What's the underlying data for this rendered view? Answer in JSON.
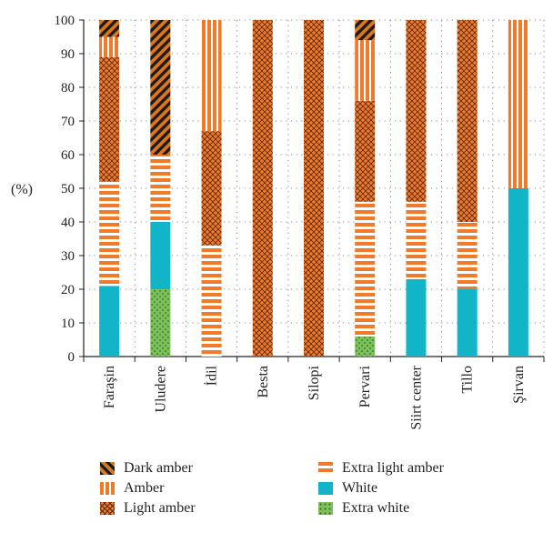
{
  "chart_data": {
    "type": "bar",
    "stacked": true,
    "ylabel": "(%)",
    "ylim": [
      0,
      100
    ],
    "yticks": [
      0,
      10,
      20,
      30,
      40,
      50,
      60,
      70,
      80,
      90,
      100
    ],
    "grid": true,
    "legend_position": "bottom",
    "categories": [
      "Faraşin",
      "Uludere",
      "İdil",
      "Besta",
      "Silopi",
      "Pervari",
      "Siirt center",
      "Tillo",
      "Şirvan"
    ],
    "series": [
      {
        "name": "Extra white",
        "color": "#7cc05a",
        "pattern": "dots",
        "values": [
          0,
          20,
          0,
          0,
          0,
          6,
          0,
          0,
          0
        ]
      },
      {
        "name": "White",
        "color": "#12b5c7",
        "pattern": "solid",
        "values": [
          21,
          20,
          0,
          0,
          0,
          0,
          23,
          20,
          50
        ]
      },
      {
        "name": "Extra light amber",
        "color": "#f07a2a",
        "pattern": "hstripes",
        "values": [
          31,
          20,
          33,
          0,
          0,
          40,
          23,
          20,
          0
        ]
      },
      {
        "name": "Light amber",
        "color": "#f07a2a",
        "pattern": "crosshatch",
        "values": [
          37,
          0,
          34,
          100,
          100,
          30,
          54,
          60,
          0
        ]
      },
      {
        "name": "Amber",
        "color": "#f07a2a",
        "pattern": "vstripes",
        "values": [
          6,
          0,
          33,
          0,
          0,
          18,
          0,
          0,
          50
        ]
      },
      {
        "name": "Dark amber",
        "color": "#a0440f",
        "pattern": "diagonal",
        "values": [
          5,
          40,
          0,
          0,
          0,
          6,
          0,
          0,
          0
        ]
      }
    ],
    "legend_order": [
      "Dark amber",
      "Amber",
      "Light amber",
      "Extra light amber",
      "White",
      "Extra white"
    ]
  }
}
